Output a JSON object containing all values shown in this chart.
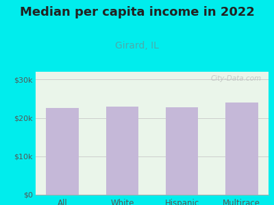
{
  "title": "Median per capita income in 2022",
  "subtitle": "Girard, IL",
  "categories": [
    "All",
    "White",
    "Hispanic",
    "Multirace"
  ],
  "values": [
    22500,
    23000,
    22800,
    24000
  ],
  "bar_color": "#c5b8d8",
  "title_fontsize": 13,
  "subtitle_fontsize": 10,
  "subtitle_color": "#4aacac",
  "tick_color": "#555555",
  "background_outer": "#00eded",
  "background_inner": "#eaf5ea",
  "ylim": [
    0,
    32000
  ],
  "yticks": [
    0,
    10000,
    20000,
    30000
  ],
  "ytick_labels": [
    "$0",
    "$10k",
    "$20k",
    "$30k"
  ],
  "watermark": "City-Data.com"
}
